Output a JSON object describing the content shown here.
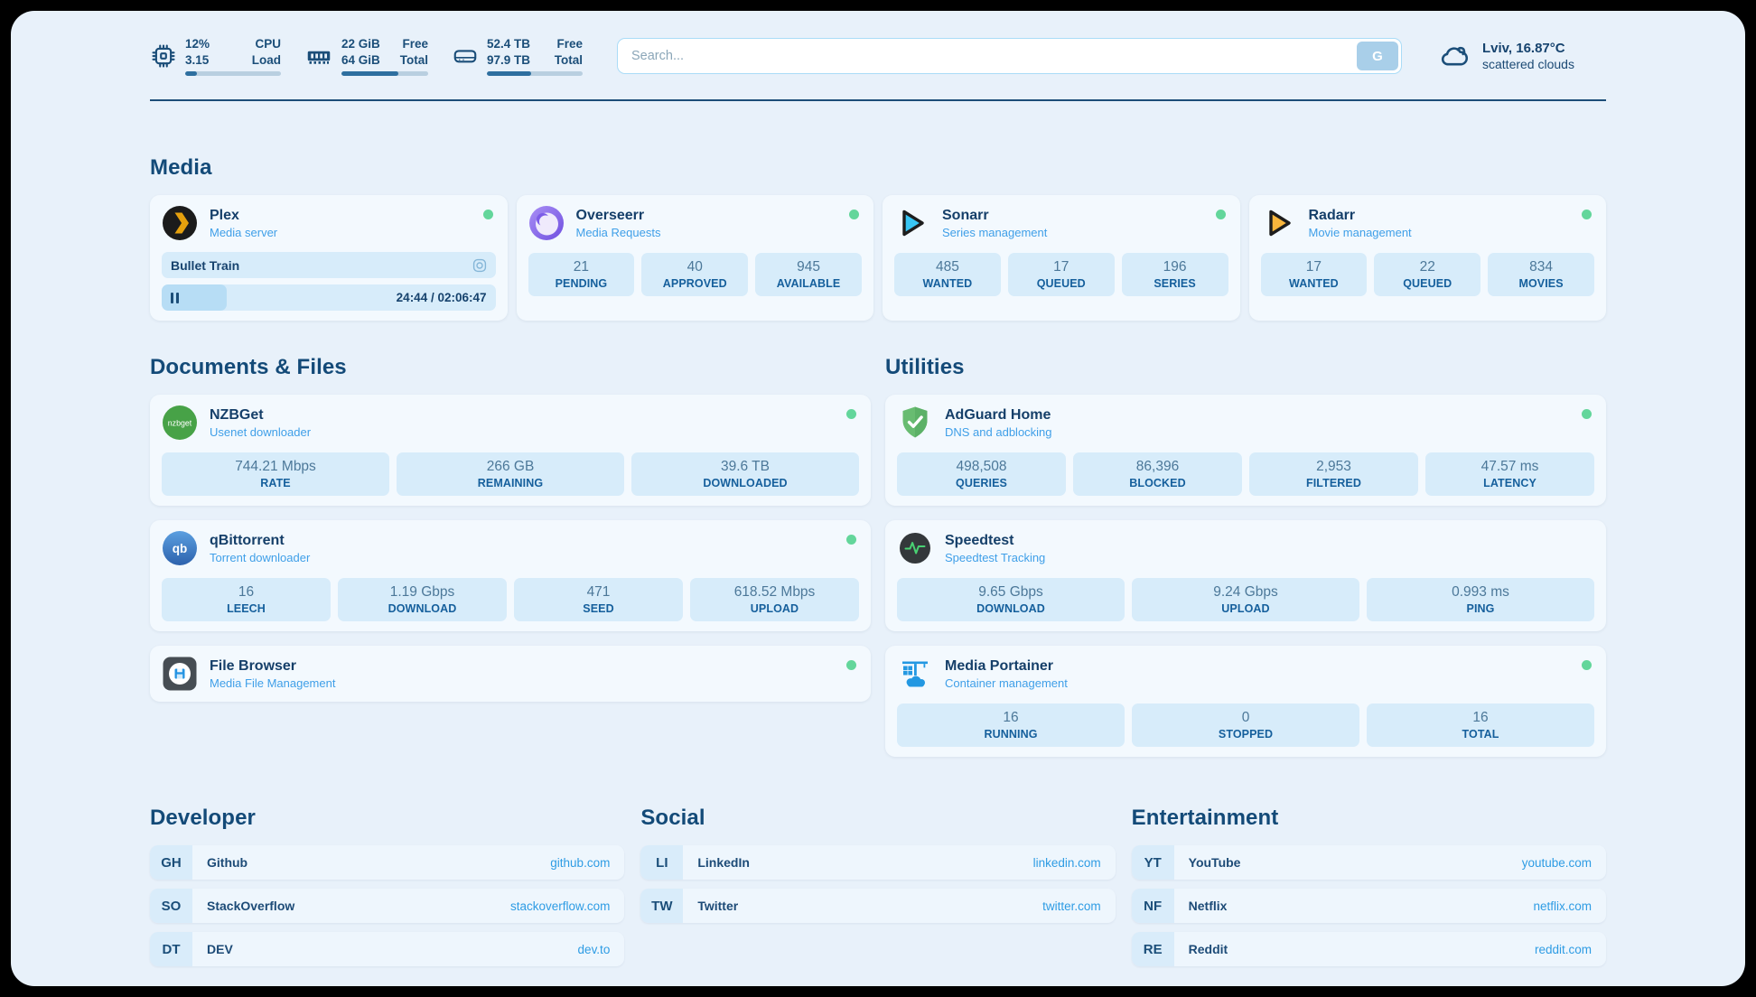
{
  "topbar": {
    "cpu": {
      "icon": "chip-icon",
      "value1": "12%",
      "value2": "3.15",
      "label1": "CPU",
      "label2": "Load",
      "progress_pct": 12
    },
    "memory": {
      "icon": "ram-icon",
      "value1": "22 GiB",
      "value2": "64 GiB",
      "label1": "Free",
      "label2": "Total",
      "progress_pct": 66
    },
    "disk": {
      "icon": "hard-drive-icon",
      "value1": "52.4 TB",
      "value2": "97.9 TB",
      "label1": "Free",
      "label2": "Total",
      "progress_pct": 46
    },
    "search": {
      "placeholder": "Search...",
      "button": "G"
    },
    "weather": {
      "icon": "cloud-icon",
      "line1": "Lviv, 16.87°C",
      "line2": "scattered clouds"
    }
  },
  "media": {
    "title": "Media",
    "plex": {
      "title": "Plex",
      "subtitle": "Media server",
      "status": "online",
      "now_playing": "Bullet Train",
      "time": "24:44 / 02:06:47",
      "progress_pct": 19.5
    },
    "overseerr": {
      "title": "Overseerr",
      "subtitle": "Media Requests",
      "status": "online",
      "stats": [
        {
          "value": "21",
          "label": "PENDING"
        },
        {
          "value": "40",
          "label": "APPROVED"
        },
        {
          "value": "945",
          "label": "AVAILABLE"
        }
      ]
    },
    "sonarr": {
      "title": "Sonarr",
      "subtitle": "Series management",
      "status": "online",
      "stats": [
        {
          "value": "485",
          "label": "WANTED"
        },
        {
          "value": "17",
          "label": "QUEUED"
        },
        {
          "value": "196",
          "label": "SERIES"
        }
      ]
    },
    "radarr": {
      "title": "Radarr",
      "subtitle": "Movie management",
      "status": "online",
      "stats": [
        {
          "value": "17",
          "label": "WANTED"
        },
        {
          "value": "22",
          "label": "QUEUED"
        },
        {
          "value": "834",
          "label": "MOVIES"
        }
      ]
    }
  },
  "documents": {
    "title": "Documents & Files",
    "nzbget": {
      "title": "NZBGet",
      "subtitle": "Usenet downloader",
      "status": "online",
      "icon_text": "nzbget",
      "stats": [
        {
          "value": "744.21 Mbps",
          "label": "RATE"
        },
        {
          "value": "266 GB",
          "label": "REMAINING"
        },
        {
          "value": "39.6 TB",
          "label": "DOWNLOADED"
        }
      ]
    },
    "qbittorrent": {
      "title": "qBittorrent",
      "subtitle": "Torrent downloader",
      "status": "online",
      "icon_text": "qb",
      "stats": [
        {
          "value": "16",
          "label": "LEECH"
        },
        {
          "value": "1.19 Gbps",
          "label": "DOWNLOAD"
        },
        {
          "value": "471",
          "label": "SEED"
        },
        {
          "value": "618.52 Mbps",
          "label": "UPLOAD"
        }
      ]
    },
    "filebrowser": {
      "title": "File Browser",
      "subtitle": "Media File Management",
      "status": "online"
    }
  },
  "utilities": {
    "title": "Utilities",
    "adguard": {
      "title": "AdGuard Home",
      "subtitle": "DNS and adblocking",
      "status": "online",
      "stats": [
        {
          "value": "498,508",
          "label": "QUERIES"
        },
        {
          "value": "86,396",
          "label": "BLOCKED"
        },
        {
          "value": "2,953",
          "label": "FILTERED"
        },
        {
          "value": "47.57 ms",
          "label": "LATENCY"
        }
      ]
    },
    "speedtest": {
      "title": "Speedtest",
      "subtitle": "Speedtest Tracking",
      "stats": [
        {
          "value": "9.65 Gbps",
          "label": "DOWNLOAD"
        },
        {
          "value": "9.24 Gbps",
          "label": "UPLOAD"
        },
        {
          "value": "0.993 ms",
          "label": "PING"
        }
      ]
    },
    "portainer": {
      "title": "Media Portainer",
      "subtitle": "Container management",
      "status": "online",
      "stats": [
        {
          "value": "16",
          "label": "RUNNING"
        },
        {
          "value": "0",
          "label": "STOPPED"
        },
        {
          "value": "16",
          "label": "TOTAL"
        }
      ]
    }
  },
  "bookmarks": {
    "developer": {
      "title": "Developer",
      "items": [
        {
          "abbr": "GH",
          "name": "Github",
          "url": "github.com"
        },
        {
          "abbr": "SO",
          "name": "StackOverflow",
          "url": "stackoverflow.com"
        },
        {
          "abbr": "DT",
          "name": "DEV",
          "url": "dev.to"
        }
      ]
    },
    "social": {
      "title": "Social",
      "items": [
        {
          "abbr": "LI",
          "name": "LinkedIn",
          "url": "linkedin.com"
        },
        {
          "abbr": "TW",
          "name": "Twitter",
          "url": "twitter.com"
        }
      ]
    },
    "entertainment": {
      "title": "Entertainment",
      "items": [
        {
          "abbr": "YT",
          "name": "YouTube",
          "url": "youtube.com"
        },
        {
          "abbr": "NF",
          "name": "Netflix",
          "url": "netflix.com"
        },
        {
          "abbr": "RE",
          "name": "Reddit",
          "url": "reddit.com"
        }
      ]
    }
  },
  "colors": {
    "page_background": "#e8f1fa",
    "card_background": "#f3f9fe",
    "stat_background": "#d7ecfa",
    "navy_text": "#174e7c",
    "subtitle_blue": "#3f9fe8",
    "link_blue": "#2e9ce4",
    "status_online_green": "#63d69b",
    "progress_fill": "#2e6f9f"
  }
}
